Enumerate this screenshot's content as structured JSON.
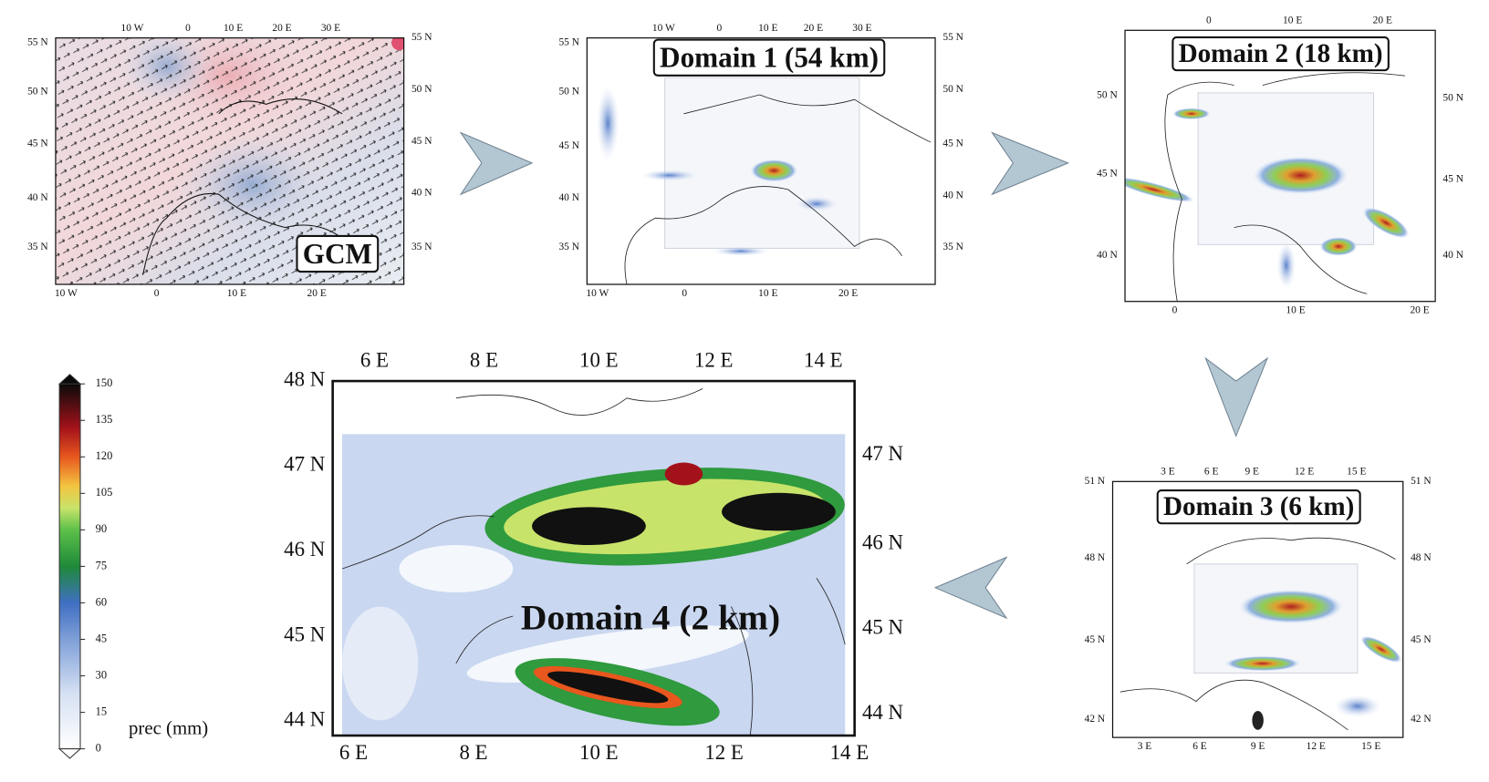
{
  "panels": [
    {
      "label": "GCM",
      "top_ticks": [
        "10 W",
        "0",
        "10 E",
        "20 E",
        "30 E"
      ],
      "bottom_ticks": [
        "10 W",
        "0",
        "10 E",
        "20 E"
      ],
      "left_ticks": [
        "55 N",
        "50 N",
        "45 N",
        "40 N",
        "35 N"
      ],
      "right_ticks": [
        "55 N",
        "50 N",
        "45 N",
        "40 N",
        "35 N"
      ]
    },
    {
      "label": "Domain 1 (54 km)",
      "top_ticks": [
        "10 W",
        "0",
        "10 E",
        "20 E",
        "30 E"
      ],
      "bottom_ticks": [
        "10 W",
        "0",
        "10 E",
        "20 E"
      ],
      "left_ticks": [
        "55 N",
        "50 N",
        "45 N",
        "40 N",
        "35 N"
      ],
      "right_ticks": [
        "55 N",
        "50 N",
        "45 N",
        "40 N",
        "35 N"
      ]
    },
    {
      "label": "Domain 2 (18 km)",
      "top_ticks": [
        "0",
        "10 E",
        "20 E"
      ],
      "bottom_ticks": [
        "0",
        "10 E",
        "20 E"
      ],
      "left_ticks": [
        "50 N",
        "45 N",
        "40 N"
      ],
      "right_ticks": [
        "50 N",
        "45 N",
        "40 N"
      ]
    },
    {
      "label": "Domain 3 (6 km)",
      "top_ticks": [
        "3 E",
        "6 E",
        "9 E",
        "12 E",
        "15 E"
      ],
      "bottom_ticks": [
        "3 E",
        "6 E",
        "9 E",
        "12 E",
        "15 E"
      ],
      "left_ticks": [
        "51 N",
        "48 N",
        "45 N",
        "42 N"
      ],
      "right_ticks": [
        "51 N",
        "48 N",
        "45 N",
        "42 N"
      ]
    },
    {
      "label": "Domain 4 (2 km)",
      "top_ticks": [
        "6 E",
        "8 E",
        "10 E",
        "12 E",
        "14 E"
      ],
      "bottom_ticks": [
        "6 E",
        "8 E",
        "10 E",
        "12 E",
        "14 E"
      ],
      "left_ticks": [
        "48 N",
        "47 N",
        "46 N",
        "45 N",
        "44 N"
      ],
      "right_ticks": [
        "47 N",
        "46 N",
        "45 N",
        "44 N"
      ]
    }
  ],
  "colorbar": {
    "label": "prec (mm)",
    "ticks": [
      0,
      15,
      30,
      45,
      60,
      75,
      90,
      105,
      120,
      135,
      150
    ]
  }
}
